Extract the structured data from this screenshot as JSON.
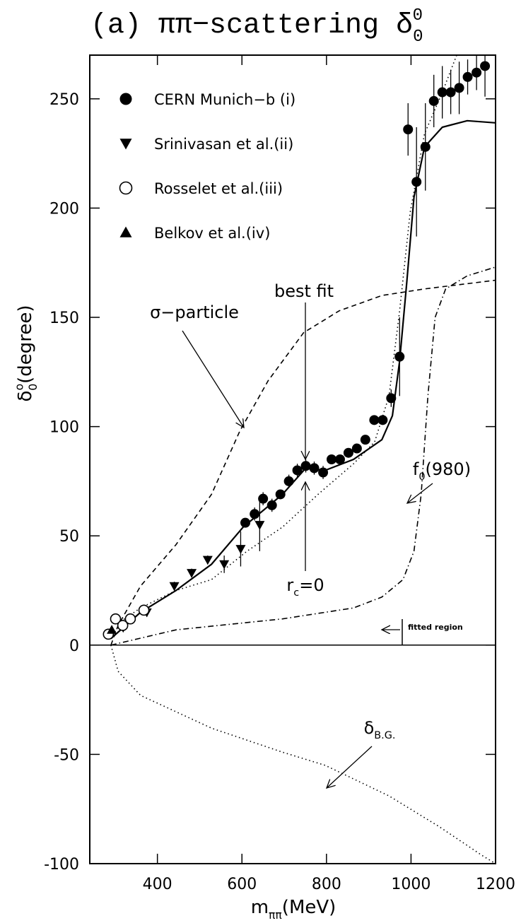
{
  "chart_data": {
    "type": "scatter",
    "title": [
      {
        "text": "(a) ππ−scattering δ"
      },
      {
        "text": "0",
        "style": "sub"
      },
      {
        "text": "0",
        "style": "sup"
      }
    ],
    "y_label": [
      {
        "text": "δ"
      },
      {
        "text": "0",
        "style": "sub"
      },
      {
        "text": "o",
        "style": "sup"
      },
      {
        "text": "(degree)"
      }
    ],
    "x_label": [
      {
        "text": "m"
      },
      {
        "text": "ππ",
        "style": "sub"
      },
      {
        "text": "(MeV)"
      }
    ],
    "xlim": [
      240,
      1200
    ],
    "ylim": [
      -100,
      270
    ],
    "xticks": [
      400,
      600,
      800,
      1000,
      1200
    ],
    "yticks": [
      -100,
      -50,
      0,
      50,
      100,
      150,
      200,
      250
    ],
    "zero_line": true,
    "legend": "upper left",
    "series": [
      {
        "name": "CERN Munich−b (i)",
        "marker": "circle-filled",
        "color": "#000",
        "x": [
          608,
          630,
          650,
          671,
          691,
          711,
          731,
          751,
          771,
          792,
          812,
          832,
          852,
          872,
          892,
          913,
          933,
          953,
          973,
          993,
          1013,
          1034,
          1054,
          1074,
          1094,
          1114,
          1134,
          1155,
          1175
        ],
        "values": [
          56,
          60,
          67,
          64,
          69,
          75,
          80,
          82,
          81,
          79,
          85,
          85,
          88,
          90,
          94,
          103,
          103,
          113,
          132,
          236,
          212,
          228,
          249,
          253,
          253,
          255,
          260,
          262,
          265
        ],
        "errors": [
          2,
          3,
          3,
          3,
          2,
          3,
          3,
          3,
          3,
          3,
          2,
          2,
          2,
          2,
          2,
          2,
          2,
          4,
          18,
          12,
          25,
          20,
          12,
          12,
          10,
          12,
          8,
          8,
          14
        ]
      },
      {
        "name": "Srinivasan et al.(ii)",
        "marker": "triangle-down",
        "color": "#000",
        "x": [
          319,
          375,
          440,
          481,
          519,
          558,
          597,
          642
        ],
        "values": [
          8,
          15,
          27,
          33,
          39,
          37,
          44,
          55
        ],
        "errors": [
          2,
          2,
          2,
          2,
          2,
          4,
          8,
          12
        ]
      },
      {
        "name": "Rosselet et al.(iii)",
        "marker": "circle-open",
        "color": "#000",
        "x": [
          284,
          301,
          318,
          336,
          368
        ],
        "values": [
          5,
          12,
          9,
          12,
          16
        ],
        "errors": [
          1,
          1,
          1,
          1,
          1
        ]
      },
      {
        "name": "Belkov et al.(iv)",
        "marker": "triangle-up",
        "color": "#000",
        "x": [
          292
        ],
        "values": [
          7
        ],
        "errors": [
          1
        ]
      }
    ],
    "curves": [
      {
        "style": "solid",
        "x": [
          290,
          360,
          444,
          528,
          603,
          696,
          751,
          797,
          864,
          931,
          956,
          973,
          990,
          1007,
          1032,
          1074,
          1133,
          1200
        ],
        "values": [
          3,
          15,
          25,
          37,
          54,
          69,
          81,
          80,
          85,
          94,
          105,
          130,
          166,
          205,
          228,
          237,
          240,
          239
        ]
      },
      {
        "style": "dotted",
        "x": [
          290,
          315,
          360,
          444,
          528,
          612,
          696,
          780,
          864,
          914,
          948,
          973,
          998,
          1032,
          1074,
          1108
        ],
        "values": [
          3,
          11,
          17,
          25,
          30,
          43,
          54,
          69,
          83,
          93,
          114,
          153,
          198,
          234,
          253,
          270
        ]
      },
      {
        "style": "dashed",
        "x": [
          290,
          307,
          360,
          444,
          528,
          595,
          662,
          746,
          830,
          931,
          1032,
          1200
        ],
        "values": [
          0,
          9,
          27,
          46,
          69,
          98,
          121,
          143,
          153,
          160,
          163,
          167
        ]
      },
      {
        "style": "dashdot",
        "x": [
          290,
          444,
          696,
          864,
          931,
          981,
          1007,
          1024,
          1040,
          1057,
          1082,
          1133,
          1200
        ],
        "values": [
          0,
          7,
          12,
          17,
          22,
          30,
          43,
          69,
          114,
          150,
          163,
          169,
          173
        ]
      },
      {
        "style": "dotted",
        "x": [
          290,
          307,
          360,
          528,
          696,
          797,
          948,
          1066,
          1166,
          1200
        ],
        "values": [
          0,
          -12,
          -23,
          -38,
          -49,
          -55,
          -69,
          -83,
          -96,
          -100
        ]
      }
    ],
    "annotations": [
      [
        {
          "text": "best fit"
        }
      ],
      [
        {
          "text": "σ−particle"
        }
      ],
      [
        {
          "text": "r"
        },
        {
          "text": "c",
          "style": "sub"
        },
        {
          "text": "=0"
        }
      ],
      [
        {
          "text": "f"
        },
        {
          "text": "0",
          "style": "sub"
        },
        {
          "text": "(980)"
        }
      ],
      [
        {
          "text": "δ"
        },
        {
          "text": "B.G.",
          "style": "sub"
        }
      ],
      [
        {
          "text": "fitted region"
        }
      ]
    ]
  }
}
